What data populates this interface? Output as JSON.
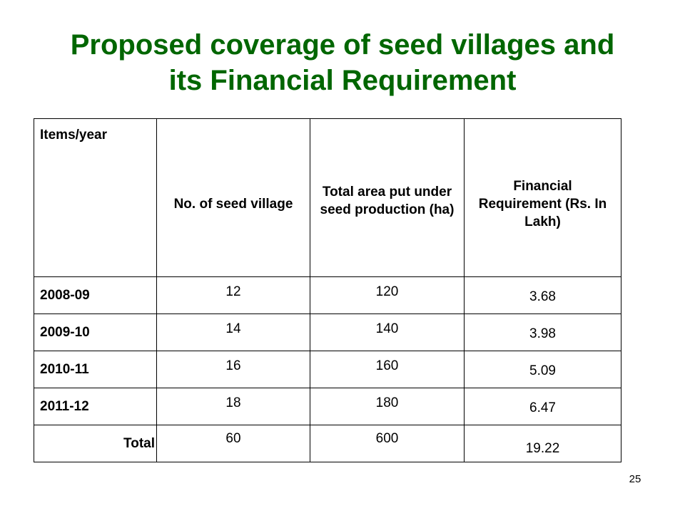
{
  "title": {
    "line1": "Proposed coverage of seed villages and",
    "line2": "its Financial Requirement"
  },
  "colors": {
    "title": "#006600",
    "text": "#000000",
    "border": "#000000",
    "background": "#ffffff"
  },
  "table": {
    "headers": {
      "items_year": "Items/year",
      "seed_villages": "No. of seed village",
      "area": "Total area put under seed production (ha)",
      "financial": "Financial Requirement (Rs. In Lakh)"
    },
    "rows": [
      {
        "year": "2008-09",
        "villages": "12",
        "area": "120",
        "financial": "3.68"
      },
      {
        "year": "2009-10",
        "villages": "14",
        "area": "140",
        "financial": "3.98"
      },
      {
        "year": "2010-11",
        "villages": "16",
        "area": "160",
        "financial": "5.09"
      },
      {
        "year": "2011-12",
        "villages": "18",
        "area": "180",
        "financial": "6.47"
      }
    ],
    "total": {
      "label": "Total",
      "villages": "60",
      "area": "600",
      "financial": "19.22"
    }
  },
  "page_number": "25"
}
